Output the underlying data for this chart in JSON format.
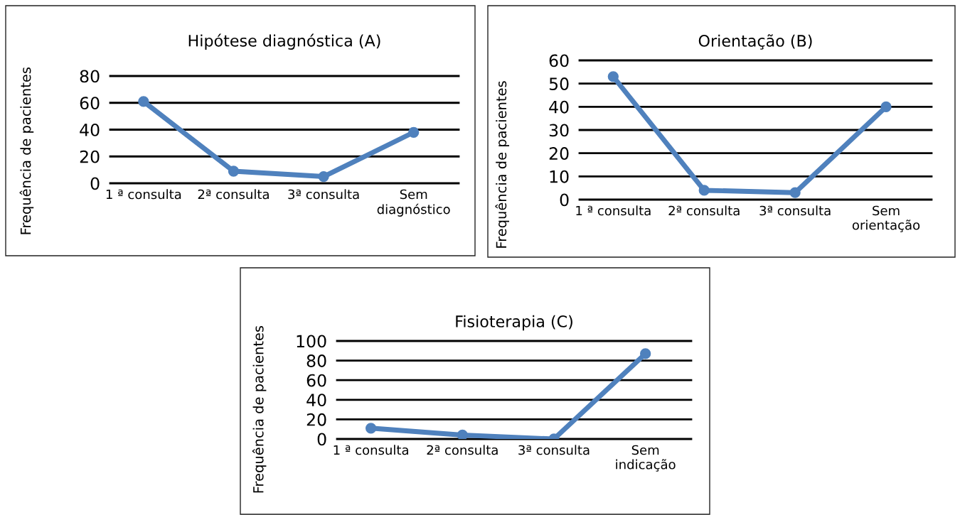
{
  "chart_data": [
    {
      "type": "line",
      "title": "Hipótese diagnóstica (A)",
      "ylabel": "Frequência de pacientes",
      "categories": [
        "1 ª consulta",
        "2ª consulta",
        "3ª consulta",
        "Sem\ndiagnóstico"
      ],
      "series": [
        {
          "color": "#4f81bd",
          "values": [
            61,
            9,
            5,
            38
          ]
        }
      ],
      "ylim": [
        0,
        80
      ],
      "yticks": [
        0,
        20,
        40,
        60,
        80
      ],
      "grid": "y",
      "marker": "circle"
    },
    {
      "type": "line",
      "title": "Orientação (B)",
      "ylabel": "Frequência de pacientes",
      "categories": [
        "1 ª consulta",
        "2ª consulta",
        "3ª consulta",
        "Sem\norientação"
      ],
      "series": [
        {
          "color": "#4f81bd",
          "values": [
            53,
            4,
            3,
            40
          ]
        }
      ],
      "ylim": [
        0,
        60
      ],
      "yticks": [
        0,
        10,
        20,
        30,
        40,
        50,
        60
      ],
      "grid": "y",
      "marker": "circle"
    },
    {
      "type": "line",
      "title": "Fisioterapia (C)",
      "ylabel": "Frequência de pacientes",
      "categories": [
        "1 ª consulta",
        "2ª consulta",
        "3ª consulta",
        "Sem\nindicação"
      ],
      "series": [
        {
          "color": "#4f81bd",
          "values": [
            11,
            4,
            0,
            87
          ]
        }
      ],
      "ylim": [
        0,
        100
      ],
      "yticks": [
        0,
        20,
        40,
        60,
        80,
        100
      ],
      "grid": "y",
      "marker": "circle"
    }
  ]
}
